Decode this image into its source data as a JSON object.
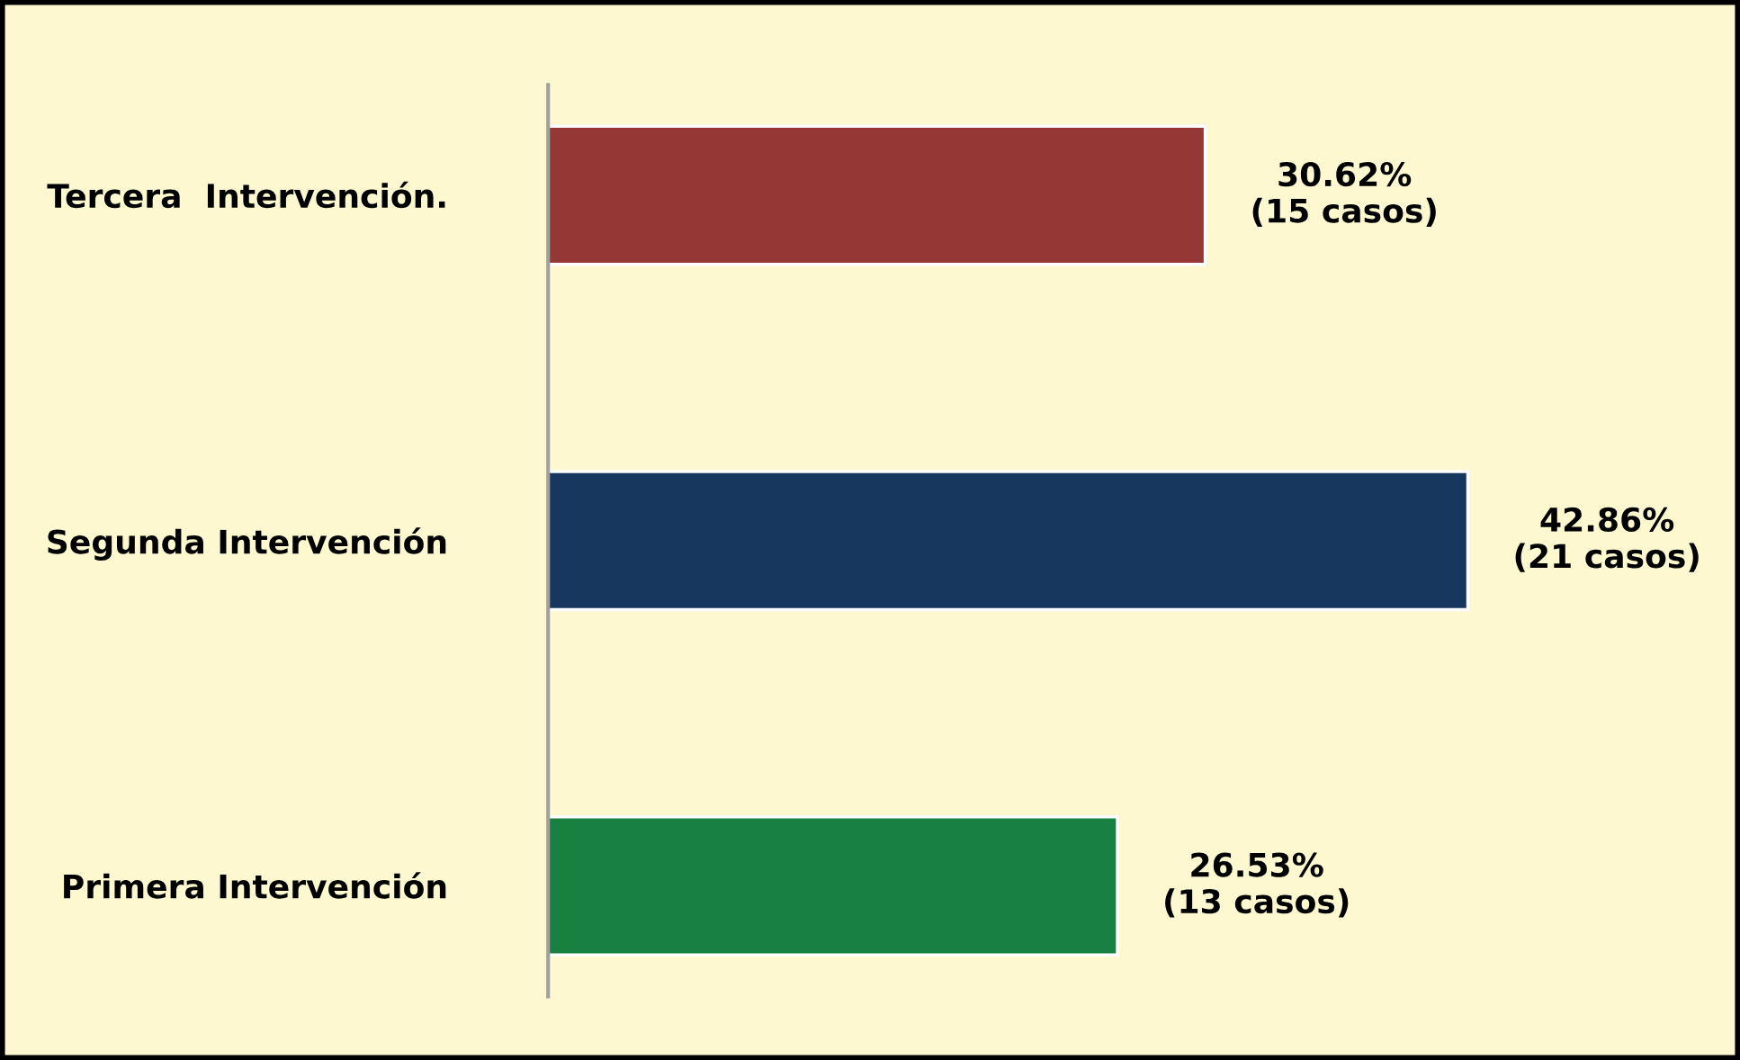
{
  "chart_data": {
    "type": "bar",
    "orientation": "horizontal",
    "categories": [
      "Tercera  Intervención.",
      "Segunda Intervención",
      "Primera Intervención"
    ],
    "values": [
      30.62,
      42.86,
      26.53
    ],
    "colors": [
      "#953735",
      "#17375e",
      "#188142"
    ],
    "value_labels": [
      "30.62%\n(15 casos)",
      "42.86%\n(21 casos)",
      "26.53%\n(13 casos)"
    ],
    "grid": false,
    "legend": false
  }
}
